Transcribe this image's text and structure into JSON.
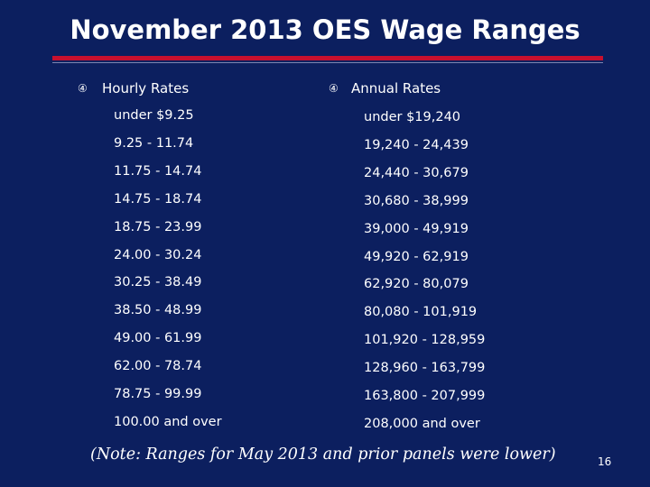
{
  "title": "November 2013 OES Wage Ranges",
  "columns": [
    {
      "marker": "④",
      "heading": "Hourly Rates",
      "rows": [
        "under $9.25",
        "9.25 - 11.74",
        "11.75 - 14.74",
        "14.75 - 18.74",
        "18.75 - 23.99",
        "24.00 - 30.24",
        "30.25 - 38.49",
        "38.50 - 48.99",
        "49.00 - 61.99",
        "62.00 - 78.74",
        "78.75 - 99.99",
        "100.00 and over"
      ]
    },
    {
      "marker": "④",
      "heading": "Annual Rates",
      "rows": [
        "under $19,240",
        "19,240 - 24,439",
        "24,440 - 30,679",
        "30,680 - 38,999",
        "39,000 - 49,919",
        "49,920 - 62,919",
        "62,920 - 80,079",
        "80,080 - 101,919",
        "101,920 - 128,959",
        "128,960 - 163,799",
        "163,800 - 207,999",
        "208,000 and over"
      ]
    }
  ],
  "note": "(Note:  Ranges for May 2013 and prior panels were lower)",
  "page_number": "16"
}
